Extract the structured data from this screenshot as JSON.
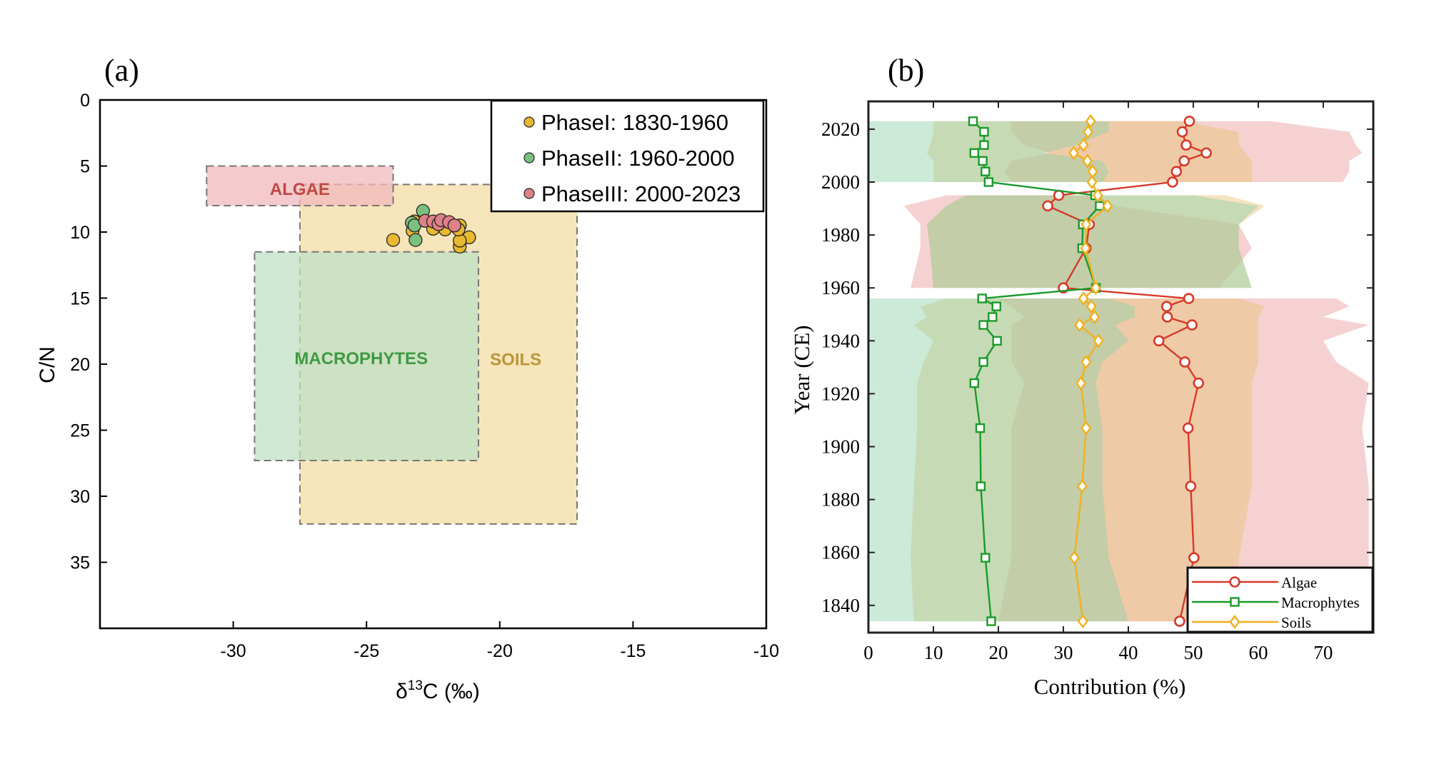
{
  "chart_data": [
    {
      "panel_label": "(a)",
      "type": "scatter",
      "xlabel": "δ13C (‰)",
      "xlabel_main": "δ",
      "xlabel_sup": "13",
      "xlabel_rest": "C (‰)",
      "ylabel": "C/N",
      "xlim": [
        -35,
        -10
      ],
      "ylim": [
        0,
        40
      ],
      "y_reversed": true,
      "xticks": [
        -30,
        -25,
        -20,
        -15,
        -10
      ],
      "yticks": [
        0,
        5,
        10,
        15,
        20,
        25,
        30,
        35
      ],
      "legend_position": "top-right",
      "source_boxes": [
        {
          "name": "SOILS",
          "x": [
            -27.5,
            -17.1
          ],
          "y": [
            6.4,
            32.1
          ],
          "color": "#f3dca3",
          "text_color": "#b8963a",
          "label_at": [
            -19.4,
            19.6
          ]
        },
        {
          "name": "MACROPHYTES",
          "x": [
            -29.2,
            -20.8
          ],
          "y": [
            11.5,
            27.3
          ],
          "color": "#bfe0c4",
          "text_color": "#3f9a45",
          "label_at": [
            -25.2,
            19.5
          ]
        },
        {
          "name": "ALGAE",
          "x": [
            -31.0,
            -24.0
          ],
          "y": [
            5.0,
            8.0
          ],
          "color": "#f0b8bc",
          "text_color": "#c04848",
          "label_at": [
            -27.5,
            6.7
          ]
        }
      ],
      "series": [
        {
          "name": "PhaseI: 1830-1960",
          "color": "#e8b830",
          "x": [
            -24.0,
            -21.5,
            -21.15,
            -21.5,
            -21.5,
            -21.55,
            -22.05,
            -22.5,
            -23.27,
            -23.2
          ],
          "y": [
            10.6,
            11.1,
            10.4,
            10.65,
            9.5,
            9.8,
            9.8,
            9.75,
            9.9,
            9.2
          ]
        },
        {
          "name": "PhaseII: 1960-2000",
          "color": "#7cc080",
          "x": [
            -22.88,
            -23.3,
            -23.2,
            -23.16
          ],
          "y": [
            8.4,
            9.3,
            9.5,
            10.6
          ]
        },
        {
          "name": "PhaseIII: 2000-2023",
          "color": "#e08088",
          "x": [
            -22.8,
            -22.5,
            -22.3,
            -22.2,
            -21.9,
            -21.7
          ],
          "y": [
            9.15,
            9.2,
            9.4,
            9.1,
            9.25,
            9.5
          ]
        }
      ]
    },
    {
      "panel_label": "(b)",
      "type": "line",
      "xlabel": "Contribution (%)",
      "ylabel": "Year (CE)",
      "xlim": [
        0,
        77.7
      ],
      "ylim": [
        1829.7,
        2030.5
      ],
      "xticks": [
        0,
        10,
        20,
        30,
        40,
        50,
        60,
        70
      ],
      "yticks": [
        1840,
        1860,
        1880,
        1900,
        1920,
        1940,
        1960,
        1980,
        2000,
        2020
      ],
      "legend_position": "bottom-right",
      "years": [
        2023,
        2019,
        2014,
        2011,
        2008,
        2004,
        2000,
        1995,
        1991,
        1984,
        1975,
        1960,
        1956,
        1953,
        1949,
        1946,
        1940,
        1932,
        1924,
        1907,
        1885,
        1858,
        1834
      ],
      "series": [
        {
          "name": "Algae",
          "color": "#d63a2a",
          "band_color": "#e89a9a",
          "marker": "circle",
          "values": [
            49.4,
            48.3,
            48.9,
            52.0,
            48.6,
            47.4,
            46.8,
            29.3,
            27.6,
            34.0,
            33.5,
            30.0,
            49.3,
            45.9,
            46.0,
            49.8,
            44.7,
            48.7,
            50.8,
            49.2,
            49.6,
            50.1,
            47.9
          ],
          "bands": [
            {
              "years": [
                1834,
                1858,
                1885,
                1907,
                1924,
                1932,
                1940,
                1946,
                1949,
                1953,
                1956
              ],
              "lower": [
                20,
                22,
                22,
                22,
                24,
                22,
                22,
                22,
                24,
                22,
                20
              ],
              "upper": [
                77,
                77,
                77,
                76,
                77,
                72,
                70,
                77,
                70,
                74,
                72
              ]
            },
            {
              "years": [
                1960,
                1975,
                1984,
                1991,
                1995
              ],
              "lower": [
                6.5,
                8,
                8,
                5.5,
                12
              ],
              "upper": [
                54,
                59,
                57,
                38,
                35
              ]
            },
            {
              "years": [
                2000,
                2004,
                2008,
                2011,
                2014,
                2019,
                2023
              ],
              "lower": [
                22,
                21,
                22,
                28,
                24,
                22,
                22
              ],
              "upper": [
                73,
                74,
                74,
                76,
                75,
                74,
                62
              ]
            }
          ]
        },
        {
          "name": "Macrophytes",
          "color": "#1a9a2a",
          "band_color": "#8fd0a8",
          "marker": "square",
          "values": [
            16.1,
            17.8,
            17.8,
            16.3,
            17.6,
            18.0,
            18.5,
            34.9,
            35.6,
            33.0,
            32.9,
            35.0,
            17.5,
            19.7,
            19.1,
            17.7,
            19.8,
            17.7,
            16.3,
            17.2,
            17.3,
            18.0,
            18.9
          ],
          "bands": [
            {
              "years": [
                1834,
                1858,
                1885,
                1907,
                1924,
                1932,
                1940,
                1946,
                1949,
                1953,
                1956
              ],
              "lower": [
                0,
                0,
                0,
                0,
                0,
                0,
                0,
                0,
                0,
                0,
                0
              ],
              "upper": [
                40,
                37,
                36,
                36,
                35,
                36,
                40,
                38,
                41,
                41,
                37
              ]
            },
            {
              "years": [
                1960,
                1975,
                1984,
                1991,
                1995
              ],
              "lower": [
                10,
                9.5,
                9,
                12,
                15
              ],
              "upper": [
                59,
                57,
                57,
                60,
                50
              ]
            },
            {
              "years": [
                2000,
                2004,
                2008,
                2011,
                2014,
                2019,
                2023
              ],
              "lower": [
                0,
                0,
                0,
                0,
                0,
                0,
                0
              ],
              "upper": [
                36,
                37,
                36,
                27,
                32,
                37,
                37
              ]
            }
          ]
        },
        {
          "name": "Soils",
          "color": "#f0b020",
          "band_color": "#e8c070",
          "marker": "diamond",
          "values": [
            34.2,
            33.8,
            33.1,
            31.6,
            33.7,
            34.5,
            34.4,
            35.3,
            36.8,
            33.5,
            33.4,
            35.0,
            33.1,
            34.3,
            34.8,
            32.5,
            35.4,
            33.5,
            32.7,
            33.5,
            32.9,
            31.7,
            33.0
          ],
          "bands": [
            {
              "years": [
                1834,
                1858,
                1885,
                1907,
                1924,
                1932,
                1940,
                1946,
                1949,
                1953,
                1956
              ],
              "lower": [
                7,
                6.5,
                7,
                7.5,
                7.5,
                8.5,
                10,
                7,
                9,
                8,
                12
              ],
              "upper": [
                57,
                57,
                59,
                59,
                59,
                60,
                60,
                60,
                60,
                61,
                57
              ]
            },
            {
              "years": [
                1960,
                1975,
                1984,
                1991,
                1995
              ],
              "lower": [
                10,
                9.5,
                9,
                12,
                15
              ],
              "upper": [
                59,
                57,
                57,
                61,
                55
              ]
            },
            {
              "years": [
                2000,
                2004,
                2008,
                2011,
                2014,
                2019,
                2023
              ],
              "lower": [
                10,
                10,
                10,
                9,
                9.5,
                10,
                10
              ],
              "upper": [
                59,
                59,
                59,
                58,
                57,
                57,
                48
              ]
            }
          ]
        }
      ]
    }
  ]
}
